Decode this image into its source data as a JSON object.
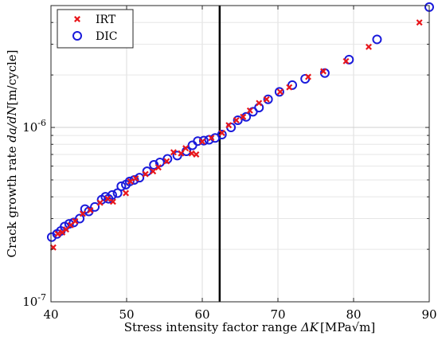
{
  "chart_data": {
    "type": "scatter",
    "title": "",
    "xlabel": {
      "text": "Stress intensity factor range",
      "symbol": "ΔK",
      "unit": "[MPa√m]"
    },
    "ylabel": {
      "text": "Crack growth rate",
      "symbol": "da/dN",
      "unit": "[m/cycle]"
    },
    "xlim": [
      40,
      90
    ],
    "ylim": [
      1e-07,
      5e-06
    ],
    "yscale": "log",
    "grid": true,
    "legend_position": "top-left",
    "x_ticks": [
      40,
      50,
      60,
      70,
      80,
      90
    ],
    "x_tick_labels": [
      "40",
      "50",
      "60",
      "70",
      "80",
      "90"
    ],
    "y_ticks": [
      1e-07,
      1e-06
    ],
    "y_tick_labels": [
      {
        "mant": "10",
        "exp": "-7"
      },
      {
        "mant": "10",
        "exp": "-6"
      }
    ],
    "reference_line": {
      "x": 62.3,
      "color": "#000000"
    },
    "series": [
      {
        "name": "IRT",
        "marker": "x",
        "color": "#e8161b",
        "points": [
          [
            40.3,
            2.05e-07
          ],
          [
            40.9,
            2.45e-07
          ],
          [
            41.5,
            2.5e-07
          ],
          [
            42.0,
            2.6e-07
          ],
          [
            42.6,
            2.75e-07
          ],
          [
            43.2,
            2.9e-07
          ],
          [
            44.2,
            3.2e-07
          ],
          [
            45.2,
            3.35e-07
          ],
          [
            46.5,
            3.7e-07
          ],
          [
            47.5,
            3.9e-07
          ],
          [
            48.2,
            3.75e-07
          ],
          [
            49.9,
            4.2e-07
          ],
          [
            50.5,
            4.9e-07
          ],
          [
            51.2,
            5.1e-07
          ],
          [
            52.5,
            5.4e-07
          ],
          [
            53.5,
            5.6e-07
          ],
          [
            54.2,
            5.9e-07
          ],
          [
            55.3,
            6.4e-07
          ],
          [
            56.2,
            7.2e-07
          ],
          [
            57.2,
            7.1e-07
          ],
          [
            57.8,
            7.6e-07
          ],
          [
            58.6,
            7.1e-07
          ],
          [
            59.2,
            7e-07
          ],
          [
            60.0,
            8.3e-07
          ],
          [
            61.2,
            8.7e-07
          ],
          [
            62.6,
            9.3e-07
          ],
          [
            63.5,
            1.03e-06
          ],
          [
            64.5,
            1.1e-06
          ],
          [
            65.4,
            1.15e-06
          ],
          [
            66.3,
            1.25e-06
          ],
          [
            67.5,
            1.38e-06
          ],
          [
            68.5,
            1.45e-06
          ],
          [
            70.3,
            1.6e-06
          ],
          [
            71.5,
            1.7e-06
          ],
          [
            74.0,
            1.95e-06
          ],
          [
            76.0,
            2.1e-06
          ],
          [
            79.0,
            2.4e-06
          ],
          [
            82.0,
            2.9e-06
          ],
          [
            88.7,
            4e-06
          ]
        ]
      },
      {
        "name": "DIC",
        "marker": "o",
        "color": "#1a1adb",
        "points": [
          [
            40.1,
            2.35e-07
          ],
          [
            40.8,
            2.45e-07
          ],
          [
            41.3,
            2.55e-07
          ],
          [
            41.8,
            2.7e-07
          ],
          [
            42.4,
            2.8e-07
          ],
          [
            43.0,
            2.85e-07
          ],
          [
            43.8,
            3e-07
          ],
          [
            44.5,
            3.4e-07
          ],
          [
            45.0,
            3.3e-07
          ],
          [
            45.8,
            3.5e-07
          ],
          [
            46.7,
            3.85e-07
          ],
          [
            47.2,
            4e-07
          ],
          [
            47.6,
            3.9e-07
          ],
          [
            48.1,
            4.1e-07
          ],
          [
            48.8,
            4.2e-07
          ],
          [
            49.3,
            4.6e-07
          ],
          [
            49.9,
            4.7e-07
          ],
          [
            50.4,
            4.9e-07
          ],
          [
            51.0,
            5e-07
          ],
          [
            51.7,
            5.15e-07
          ],
          [
            52.7,
            5.6e-07
          ],
          [
            53.6,
            6.1e-07
          ],
          [
            54.4,
            6.3e-07
          ],
          [
            55.4,
            6.6e-07
          ],
          [
            56.7,
            6.9e-07
          ],
          [
            57.9,
            7.3e-07
          ],
          [
            58.7,
            7.9e-07
          ],
          [
            59.4,
            8.35e-07
          ],
          [
            60.2,
            8.4e-07
          ],
          [
            60.9,
            8.5e-07
          ],
          [
            61.7,
            8.7e-07
          ],
          [
            62.6,
            9.1e-07
          ],
          [
            63.8,
            1e-06
          ],
          [
            64.7,
            1.1e-06
          ],
          [
            65.8,
            1.15e-06
          ],
          [
            66.7,
            1.23e-06
          ],
          [
            67.5,
            1.3e-06
          ],
          [
            68.7,
            1.45e-06
          ],
          [
            70.2,
            1.6e-06
          ],
          [
            71.9,
            1.75e-06
          ],
          [
            73.6,
            1.9e-06
          ],
          [
            76.2,
            2.05e-06
          ],
          [
            79.4,
            2.45e-06
          ],
          [
            83.1,
            3.2e-06
          ],
          [
            90.0,
            4.9e-06
          ]
        ]
      }
    ]
  }
}
